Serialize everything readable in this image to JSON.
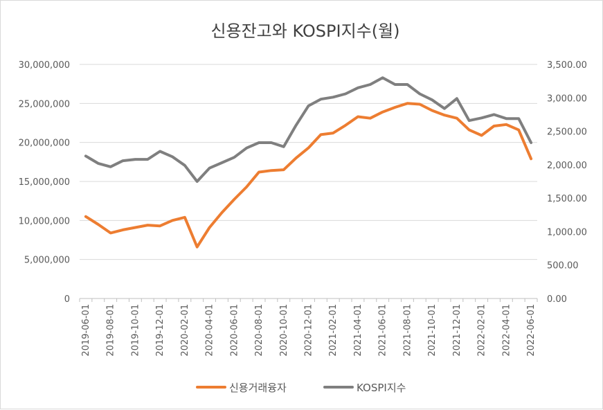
{
  "chart_data": {
    "type": "line",
    "title": "신용잔고와 KOSPI지수(월)",
    "x": [
      "2019-06-01",
      "2019-07-01",
      "2019-08-01",
      "2019-09-01",
      "2019-10-01",
      "2019-11-01",
      "2019-12-01",
      "2020-01-01",
      "2020-02-01",
      "2020-03-01",
      "2020-04-01",
      "2020-05-01",
      "2020-06-01",
      "2020-07-01",
      "2020-08-01",
      "2020-09-01",
      "2020-10-01",
      "2020-11-01",
      "2020-12-01",
      "2021-01-01",
      "2021-02-01",
      "2021-03-01",
      "2021-04-01",
      "2021-05-01",
      "2021-06-01",
      "2021-07-01",
      "2021-08-01",
      "2021-09-01",
      "2021-10-01",
      "2021-11-01",
      "2021-12-01",
      "2022-01-01",
      "2022-02-01",
      "2022-03-01",
      "2022-04-01",
      "2022-05-01",
      "2022-06-01"
    ],
    "x_tick_labels": [
      "2019-06-01",
      "2019-08-01",
      "2019-10-01",
      "2019-12-01",
      "2020-02-01",
      "2020-04-01",
      "2020-06-01",
      "2020-08-01",
      "2020-10-01",
      "2020-12-01",
      "2021-02-01",
      "2021-04-01",
      "2021-06-01",
      "2021-08-01",
      "2021-10-01",
      "2021-12-01",
      "2022-02-01",
      "2022-04-01",
      "2022-06-01"
    ],
    "y_left": {
      "range": [
        0,
        30000000
      ],
      "tick_labels": [
        "0",
        "5,000,000",
        "10,000,000",
        "15,000,000",
        "20,000,000",
        "25,000,000",
        "30,000,000"
      ],
      "tick_values": [
        0,
        5000000,
        10000000,
        15000000,
        20000000,
        25000000,
        30000000
      ]
    },
    "y_right": {
      "range": [
        0,
        3500
      ],
      "tick_labels": [
        "0.00",
        "500.00",
        "1,000.00",
        "1,500.00",
        "2,000.00",
        "2,500.00",
        "3,000.00",
        "3,500.00"
      ],
      "tick_values": [
        0,
        500,
        1000,
        1500,
        2000,
        2500,
        3000,
        3500
      ]
    },
    "grid": true,
    "legend_position": "bottom",
    "series": [
      {
        "name": "신용거래융자",
        "axis": "left",
        "color": "#ed7d31",
        "values": [
          10500000,
          9500000,
          8400000,
          8800000,
          9100000,
          9400000,
          9300000,
          10000000,
          10400000,
          6600000,
          9100000,
          11000000,
          12700000,
          14300000,
          16200000,
          16400000,
          16500000,
          18000000,
          19300000,
          21000000,
          21200000,
          22200000,
          23300000,
          23100000,
          23900000,
          24500000,
          25000000,
          24900000,
          24100000,
          23500000,
          23100000,
          21600000,
          20900000,
          22100000,
          22300000,
          21600000,
          17900000
        ]
      },
      {
        "name": "KOSPI지수",
        "axis": "right",
        "color": "#7f7f7f",
        "values": [
          2130,
          2020,
          1970,
          2060,
          2080,
          2080,
          2200,
          2120,
          1990,
          1750,
          1950,
          2030,
          2110,
          2250,
          2330,
          2330,
          2270,
          2590,
          2880,
          2980,
          3010,
          3060,
          3150,
          3200,
          3300,
          3200,
          3200,
          3060,
          2970,
          2840,
          2990,
          2660,
          2700,
          2750,
          2690,
          2690,
          2330
        ]
      }
    ]
  }
}
